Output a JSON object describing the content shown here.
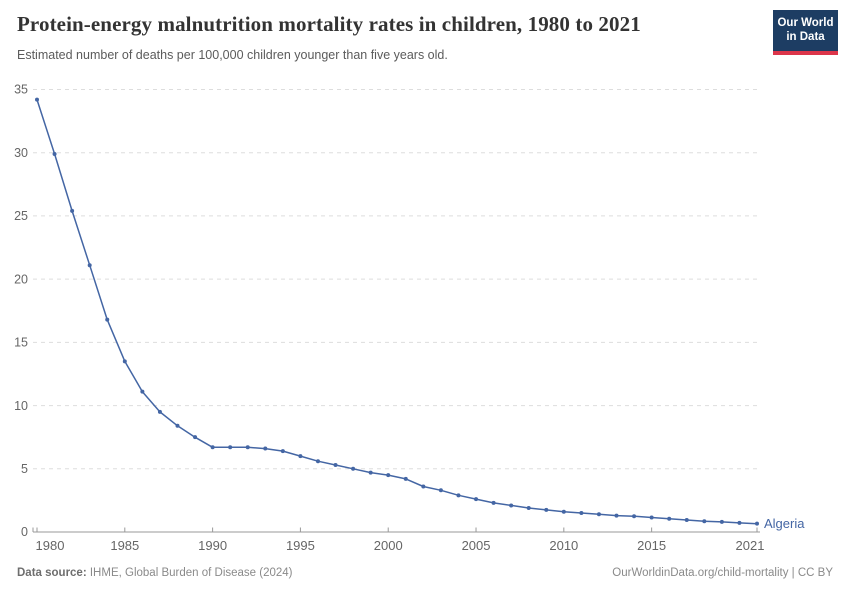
{
  "header": {
    "title": "Protein-energy malnutrition mortality rates in children, 1980 to 2021",
    "subtitle": "Estimated number of deaths per 100,000 children younger than five years old.",
    "logo_line1": "Our World",
    "logo_line2": "in Data"
  },
  "chart_data": {
    "type": "line",
    "title": "Protein-energy malnutrition mortality rates in children, 1980 to 2021",
    "subtitle": "Estimated number of deaths per 100,000 children younger than five years old.",
    "xlabel": "",
    "ylabel": "",
    "xlim": [
      1980,
      2021
    ],
    "ylim": [
      0,
      35
    ],
    "x_ticks": [
      1980,
      1985,
      1990,
      1995,
      2000,
      2005,
      2010,
      2015,
      2021
    ],
    "y_ticks": [
      0,
      5,
      10,
      15,
      20,
      25,
      30,
      35
    ],
    "grid": "horizontal-dashed",
    "legend": "end-of-line-label",
    "series": [
      {
        "name": "Algeria",
        "color": "#4466a4",
        "x": [
          1980,
          1981,
          1982,
          1983,
          1984,
          1985,
          1986,
          1987,
          1988,
          1989,
          1990,
          1991,
          1992,
          1993,
          1994,
          1995,
          1996,
          1997,
          1998,
          1999,
          2000,
          2001,
          2002,
          2003,
          2004,
          2005,
          2006,
          2007,
          2008,
          2009,
          2010,
          2011,
          2012,
          2013,
          2014,
          2015,
          2016,
          2017,
          2018,
          2019,
          2020,
          2021
        ],
        "values": [
          34.2,
          29.9,
          25.4,
          21.1,
          16.8,
          13.5,
          11.1,
          9.5,
          8.4,
          7.5,
          6.7,
          6.7,
          6.7,
          6.6,
          6.4,
          6.0,
          5.6,
          5.3,
          5.0,
          4.7,
          4.5,
          4.2,
          3.6,
          3.3,
          2.9,
          2.6,
          2.3,
          2.1,
          1.9,
          1.75,
          1.6,
          1.5,
          1.4,
          1.3,
          1.25,
          1.15,
          1.05,
          0.95,
          0.85,
          0.8,
          0.72,
          0.66
        ]
      }
    ]
  },
  "colors": {
    "line": "#4466a4",
    "entity_label": "#4466a4",
    "grid": "#dddddd",
    "axis": "#999999",
    "tick_label": "#666666",
    "logo_bg": "#1d3d63",
    "logo_accent": "#dc354a"
  },
  "footer": {
    "datasource_label": "Data source:",
    "datasource_text": " IHME, Global Burden of Disease (2024)",
    "credit": "OurWorldinData.org/child-mortality | CC BY"
  }
}
